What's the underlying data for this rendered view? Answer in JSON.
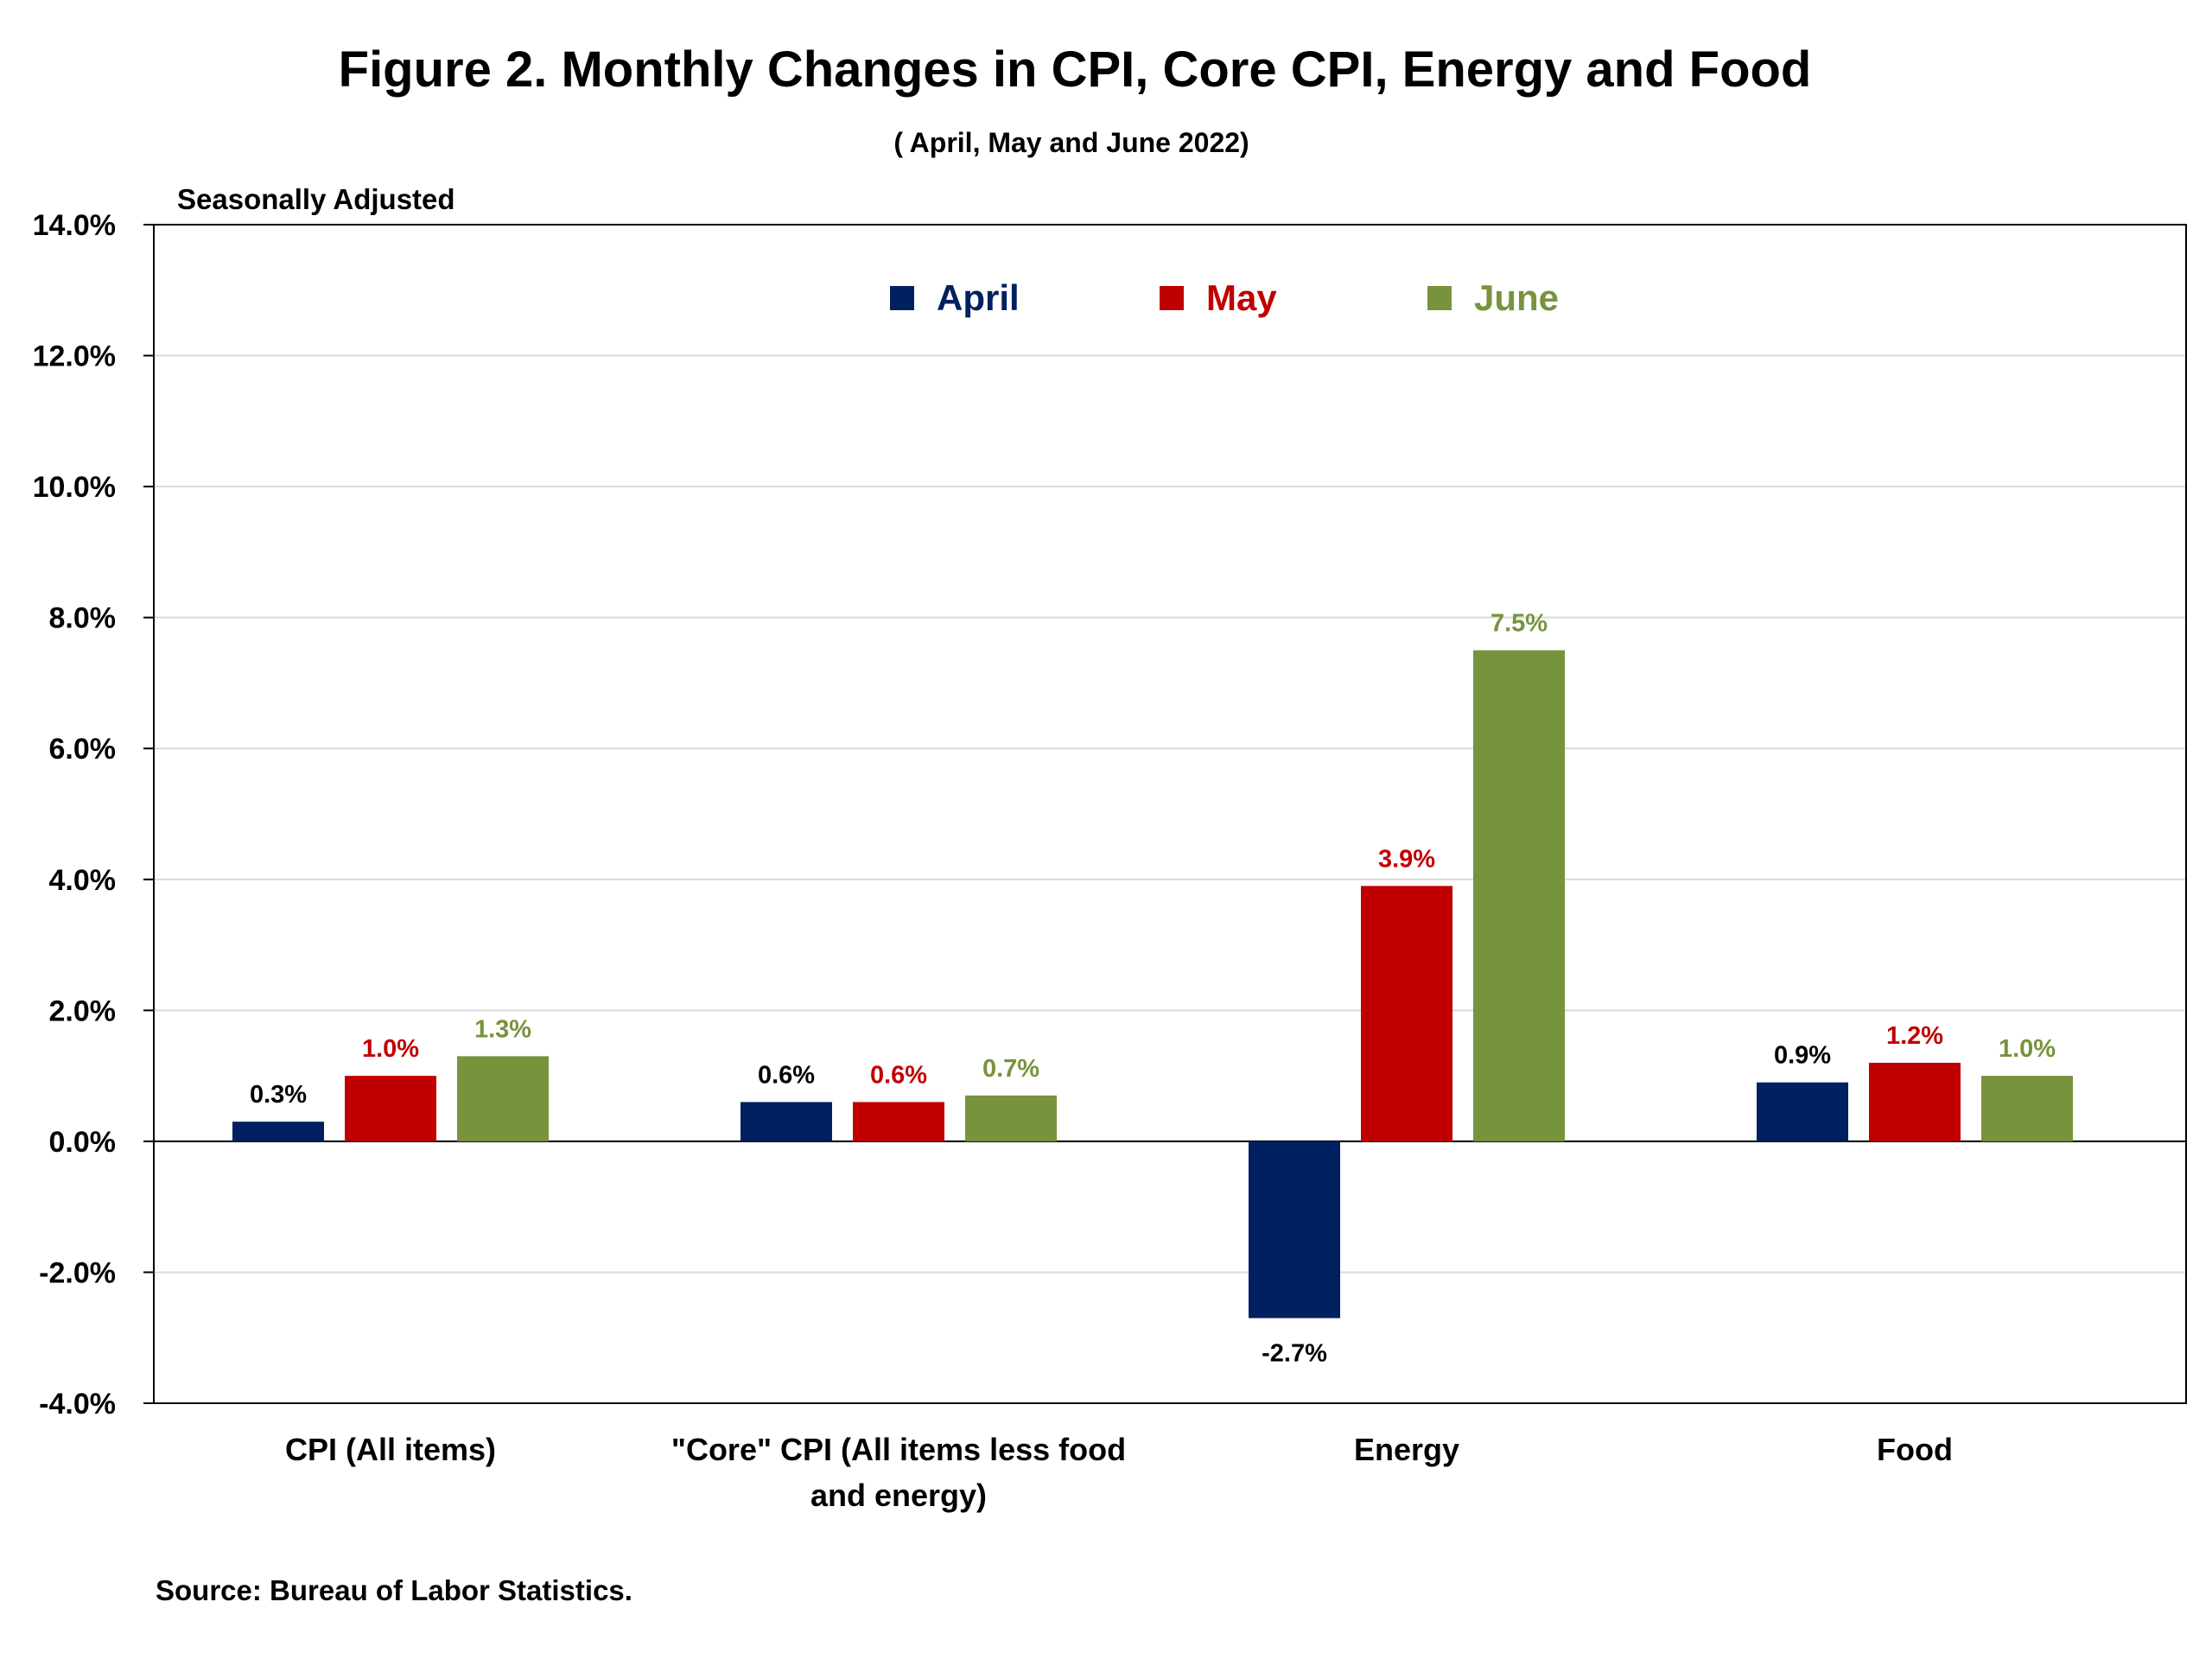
{
  "chart_data": {
    "type": "bar",
    "title": "Figure 2. Monthly Changes in CPI, Core CPI, Energy and Food",
    "subtitle": "( April, May and June 2022)",
    "note": "Seasonally Adjusted",
    "source": "Source: Bureau of Labor Statistics.",
    "categories": [
      [
        "CPI (All items)"
      ],
      [
        "\"Core\" CPI (All items less food",
        "and energy)"
      ],
      [
        "Energy"
      ],
      [
        "Food"
      ]
    ],
    "series": [
      {
        "name": "April",
        "color": "#002060",
        "values": [
          0.3,
          0.6,
          -2.7,
          0.9
        ],
        "labels": [
          "0.3%",
          "0.6%",
          "-2.7%",
          "0.9%"
        ],
        "label_color": "#000000"
      },
      {
        "name": "May",
        "color": "#C00000",
        "values": [
          1.0,
          0.6,
          3.9,
          1.2
        ],
        "labels": [
          "1.0%",
          "0.6%",
          "3.9%",
          "1.2%"
        ],
        "label_color": "#C00000"
      },
      {
        "name": "June",
        "color": "#77933C",
        "values": [
          1.3,
          0.7,
          7.5,
          1.0
        ],
        "labels": [
          "1.3%",
          "0.7%",
          "7.5%",
          "1.0%"
        ],
        "label_color": "#77933C"
      }
    ],
    "ylim": [
      -4.0,
      14.0
    ],
    "yticks": [
      "14.0%",
      "12.0%",
      "10.0%",
      "8.0%",
      "6.0%",
      "4.0%",
      "2.0%",
      "0.0%",
      "-2.0%",
      "-4.0%"
    ],
    "ytick_values": [
      14,
      12,
      10,
      8,
      6,
      4,
      2,
      0,
      -2,
      -4
    ],
    "grid": true,
    "legend": "top-center"
  }
}
